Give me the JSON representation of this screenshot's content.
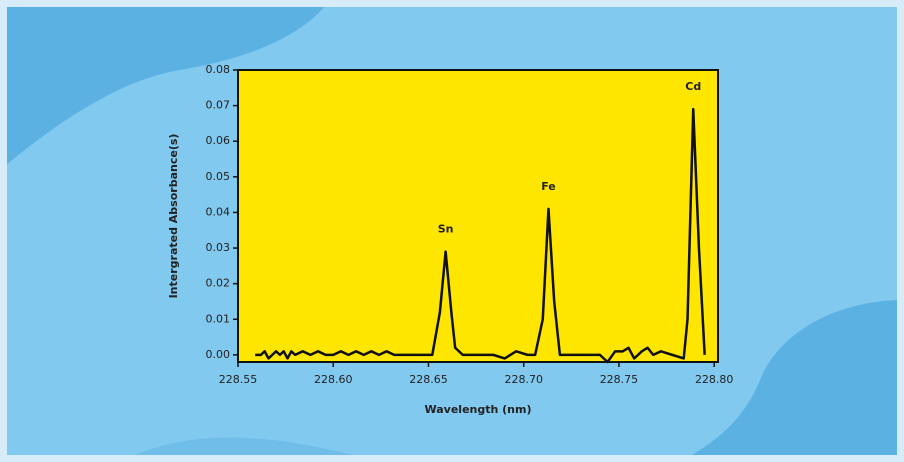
{
  "chart_data": {
    "type": "line",
    "x_label": "Wavelength (nm)",
    "y_label": "Intergrated Absorbance(s)",
    "x": [
      228.559,
      228.562,
      228.564,
      228.566,
      228.568,
      228.57,
      228.572,
      228.574,
      228.576,
      228.578,
      228.58,
      228.584,
      228.588,
      228.592,
      228.596,
      228.6,
      228.604,
      228.608,
      228.612,
      228.616,
      228.62,
      228.624,
      228.628,
      228.632,
      228.64,
      228.648,
      228.652,
      228.656,
      228.659,
      228.662,
      228.664,
      228.668,
      228.676,
      228.684,
      228.69,
      228.696,
      228.702,
      228.706,
      228.71,
      228.713,
      228.716,
      228.719,
      228.724,
      228.732,
      228.74,
      228.744,
      228.748,
      228.752,
      228.755,
      228.758,
      228.762,
      228.765,
      228.768,
      228.772,
      228.778,
      228.784,
      228.786,
      228.789,
      228.792,
      228.795
    ],
    "series": [
      {
        "color": "#111111",
        "values": [
          0.0,
          0.0,
          0.001,
          -0.001,
          0.0,
          0.001,
          0.0,
          0.001,
          -0.001,
          0.001,
          0.0,
          0.001,
          0.0,
          0.001,
          0.0,
          0.0,
          0.001,
          0.0,
          0.001,
          0.0,
          0.001,
          0.0,
          0.001,
          0.0,
          0.0,
          0.0,
          0.0,
          0.012,
          0.029,
          0.012,
          0.002,
          0.0,
          0.0,
          0.0,
          -0.001,
          0.001,
          0.0,
          0.0,
          0.01,
          0.041,
          0.015,
          0.0,
          0.0,
          0.0,
          0.0,
          -0.002,
          0.001,
          0.001,
          0.002,
          -0.001,
          0.001,
          0.002,
          0.0,
          0.001,
          0.0,
          -0.001,
          0.01,
          0.069,
          0.03,
          0.0
        ]
      }
    ],
    "annotations": [
      {
        "text": "Sn",
        "x": 228.659,
        "y": 0.029
      },
      {
        "text": "Fe",
        "x": 228.713,
        "y": 0.041
      },
      {
        "text": "Cd",
        "x": 228.789,
        "y": 0.069
      }
    ],
    "xlim": [
      228.55,
      228.802
    ],
    "ylim": [
      -0.002,
      0.08
    ],
    "xticks": [
      228.55,
      {
        "value": 228.6,
        "label": "228.60"
      },
      228.65,
      {
        "value": 228.7,
        "label": "228.70"
      },
      228.75,
      {
        "value": 228.8,
        "label": "228.80"
      }
    ],
    "yticks": [
      {
        "value": 0,
        "label": "0.00"
      },
      {
        "value": 0.01,
        "label": "0.01"
      },
      {
        "value": 0.02,
        "label": "0.02"
      },
      {
        "value": 0.03,
        "label": "0.03"
      },
      {
        "value": 0.04,
        "label": "0.04"
      },
      {
        "value": 0.05,
        "label": "0.05"
      },
      {
        "value": 0.06,
        "label": "0.06"
      },
      {
        "value": 0.07,
        "label": "0.07"
      },
      {
        "value": 0.08,
        "label": "0.08"
      }
    ],
    "plot_background": "#ffe600"
  }
}
